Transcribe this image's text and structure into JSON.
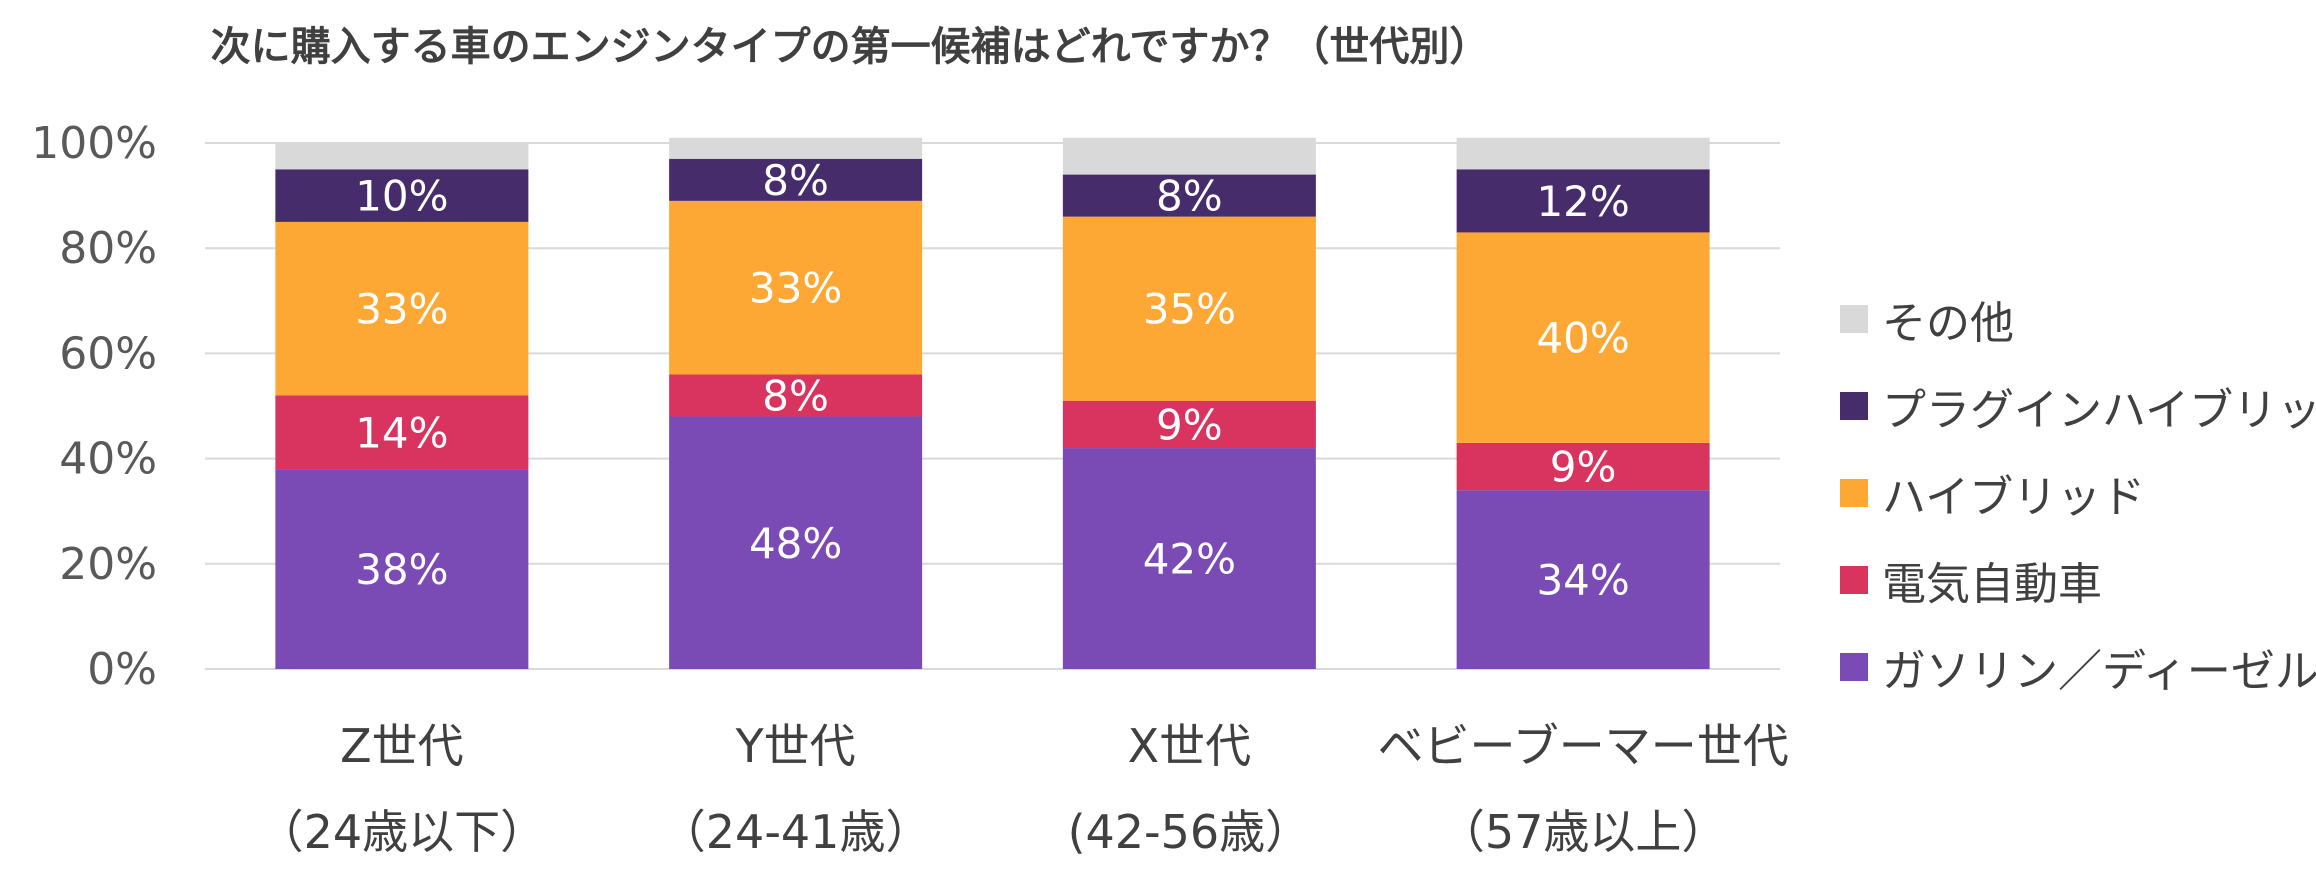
{
  "chart_data": {
    "type": "bar",
    "stacked": true,
    "title": "次に購入する車のエンジンタイプの第一候補はどれですか？（世代別）",
    "categories": [
      [
        "Z世代",
        "（24歳以下）"
      ],
      [
        "Y世代",
        "（24-41歳）"
      ],
      [
        "X世代",
        "(42-56歳）"
      ],
      [
        "ベビーブーマー世代",
        "（57歳以上）"
      ]
    ],
    "ylim": [
      0,
      100
    ],
    "yticks": [
      0,
      20,
      40,
      60,
      80,
      100
    ],
    "ytick_labels": [
      "0%",
      "20%",
      "40%",
      "60%",
      "80%",
      "100%"
    ],
    "grid": true,
    "legend_position": "right",
    "series": [
      {
        "name": "ガソリン／ディーゼル",
        "color": "#7B4BB5",
        "values": [
          38,
          48,
          42,
          34
        ],
        "labels": [
          "38%",
          "48%",
          "42%",
          "34%"
        ]
      },
      {
        "name": "電気自動車",
        "color": "#D9345F",
        "values": [
          14,
          8,
          9,
          9
        ],
        "labels": [
          "14%",
          "8%",
          "9%",
          "9%"
        ]
      },
      {
        "name": "ハイブリッド",
        "color": "#FDA734",
        "values": [
          33,
          33,
          35,
          40
        ],
        "labels": [
          "33%",
          "33%",
          "35%",
          "40%"
        ]
      },
      {
        "name": "プラグインハイブリッド",
        "color": "#472C6B",
        "values": [
          10,
          8,
          8,
          12
        ],
        "labels": [
          "10%",
          "8%",
          "8%",
          "12%"
        ]
      },
      {
        "name": "その他",
        "color": "#D9D9D9",
        "values": [
          5,
          4,
          7,
          6
        ],
        "labels": []
      }
    ]
  }
}
